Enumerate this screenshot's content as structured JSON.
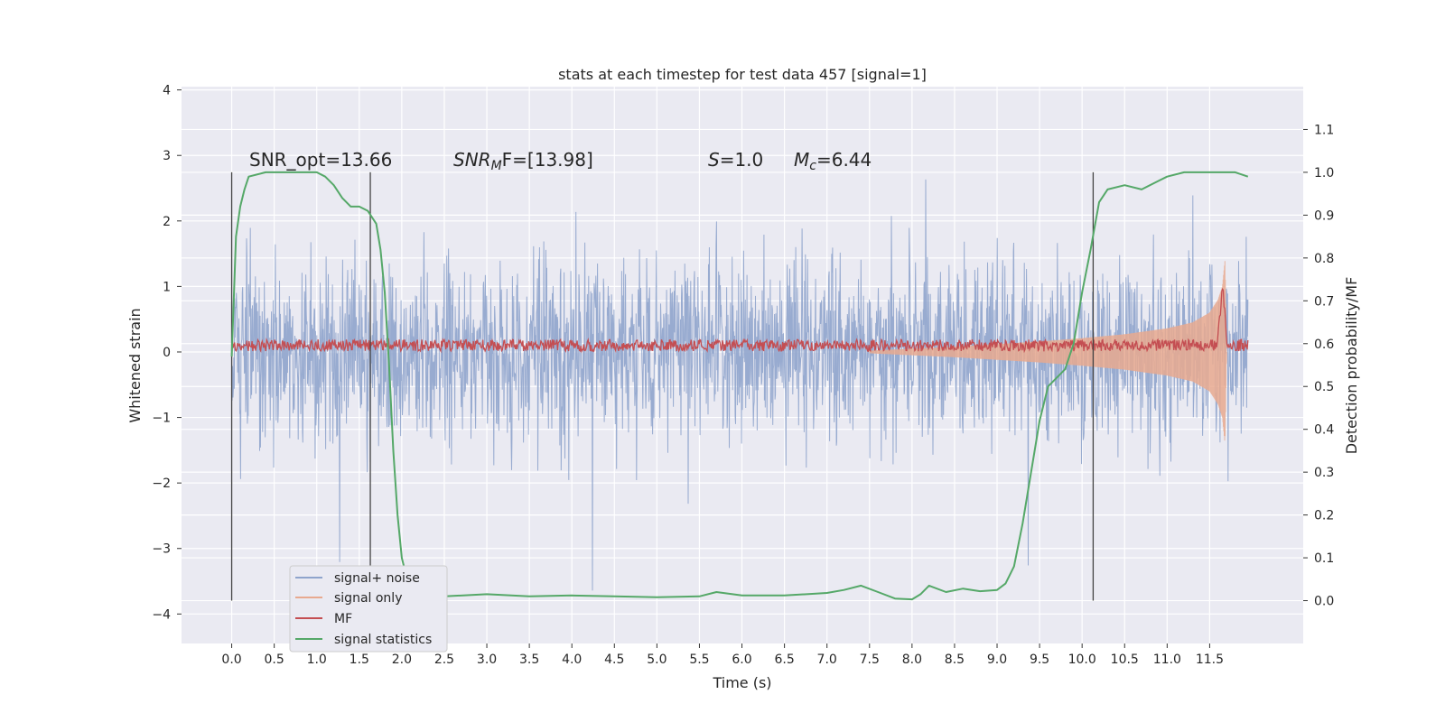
{
  "chart_data": {
    "type": "line",
    "title": "stats at each timestep for test data 457 [signal=1]",
    "xlabel": "Time (s)",
    "ylabel": "Whitened strain",
    "y2label": "Detection probability/MF",
    "xlim": [
      -0.59,
      12.6
    ],
    "ylim": [
      -4.45,
      4.05
    ],
    "y2lim": [
      -0.1,
      1.2
    ],
    "xticks": [
      "0.0",
      "0.5",
      "1.0",
      "1.5",
      "2.0",
      "2.5",
      "3.0",
      "3.5",
      "4.0",
      "4.5",
      "5.0",
      "5.5",
      "6.0",
      "6.5",
      "7.0",
      "7.5",
      "8.0",
      "8.5",
      "9.0",
      "9.5",
      "10.0",
      "10.5",
      "11.0",
      "11.5"
    ],
    "yticks": [
      "4",
      "3",
      "2",
      "1",
      "0",
      "−1",
      "−2",
      "−3",
      "−4"
    ],
    "y2ticks": [
      "0.0",
      "0.1",
      "0.2",
      "0.3",
      "0.4",
      "0.5",
      "0.6",
      "0.7",
      "0.8",
      "0.9",
      "1.0",
      "1.1"
    ],
    "grid": true,
    "legend_position": "bottom-left",
    "annotations": {
      "snr_opt": "SNR_opt=13.66",
      "snr_mf_main": "SNR",
      "snr_mf_sub": "M",
      "snr_mf_tail": "F=[13.98]",
      "s_label": "S",
      "s_value": "=1.0",
      "mc_main": "M",
      "mc_sub": "c",
      "mc_value": "=6.44"
    },
    "markers_x": [
      0.0,
      1.63,
      10.13
    ],
    "series": [
      {
        "name": "signal+ noise",
        "color": "#8fa4cc",
        "description_values": "noise band roughly between -2.3 and 2.3 with peaks to about ±3.5",
        "x_range": [
          0.0,
          11.95
        ]
      },
      {
        "name": "signal only",
        "color": "#e8a98f",
        "envelope_x": [
          7.5,
          8.0,
          8.5,
          9.0,
          9.5,
          10.0,
          10.5,
          11.0,
          11.3,
          11.5,
          11.6,
          11.65,
          11.68,
          11.7
        ],
        "envelope_y": [
          0.02,
          0.05,
          0.08,
          0.12,
          0.16,
          0.21,
          0.27,
          0.36,
          0.45,
          0.6,
          0.8,
          1.0,
          1.4,
          0.0
        ]
      },
      {
        "name": "MF",
        "color": "#c44e52",
        "baseline": 0.1,
        "peak_x": 11.65,
        "peak_y": 1.0
      },
      {
        "name": "signal statistics",
        "color": "#55a868",
        "x": [
          0.0,
          0.05,
          0.1,
          0.15,
          0.2,
          0.4,
          0.6,
          0.8,
          1.0,
          1.1,
          1.2,
          1.3,
          1.4,
          1.5,
          1.6,
          1.7,
          1.75,
          1.8,
          1.85,
          1.9,
          1.95,
          2.0,
          2.05,
          2.1,
          2.2,
          2.3,
          2.5,
          3.0,
          3.5,
          4.0,
          4.5,
          5.0,
          5.5,
          5.7,
          6.0,
          6.5,
          7.0,
          7.2,
          7.4,
          7.6,
          7.8,
          8.0,
          8.1,
          8.2,
          8.4,
          8.6,
          8.8,
          9.0,
          9.1,
          9.2,
          9.3,
          9.4,
          9.5,
          9.6,
          9.7,
          9.8,
          9.9,
          10.0,
          10.1,
          10.2,
          10.3,
          10.5,
          10.7,
          10.9,
          11.0,
          11.2,
          11.5,
          11.8,
          11.95
        ],
        "values": [
          0.57,
          0.85,
          0.92,
          0.96,
          0.99,
          1.0,
          1.0,
          1.0,
          1.0,
          0.99,
          0.97,
          0.94,
          0.92,
          0.92,
          0.91,
          0.88,
          0.82,
          0.72,
          0.55,
          0.35,
          0.2,
          0.1,
          0.06,
          0.03,
          0.015,
          0.01,
          0.01,
          0.015,
          0.01,
          0.012,
          0.01,
          0.008,
          0.01,
          0.02,
          0.012,
          0.012,
          0.018,
          0.025,
          0.035,
          0.02,
          0.005,
          0.003,
          0.015,
          0.035,
          0.02,
          0.028,
          0.022,
          0.025,
          0.04,
          0.08,
          0.18,
          0.3,
          0.42,
          0.5,
          0.52,
          0.54,
          0.6,
          0.72,
          0.82,
          0.93,
          0.96,
          0.97,
          0.96,
          0.98,
          0.99,
          1.0,
          1.0,
          1.0,
          0.99
        ]
      }
    ]
  }
}
